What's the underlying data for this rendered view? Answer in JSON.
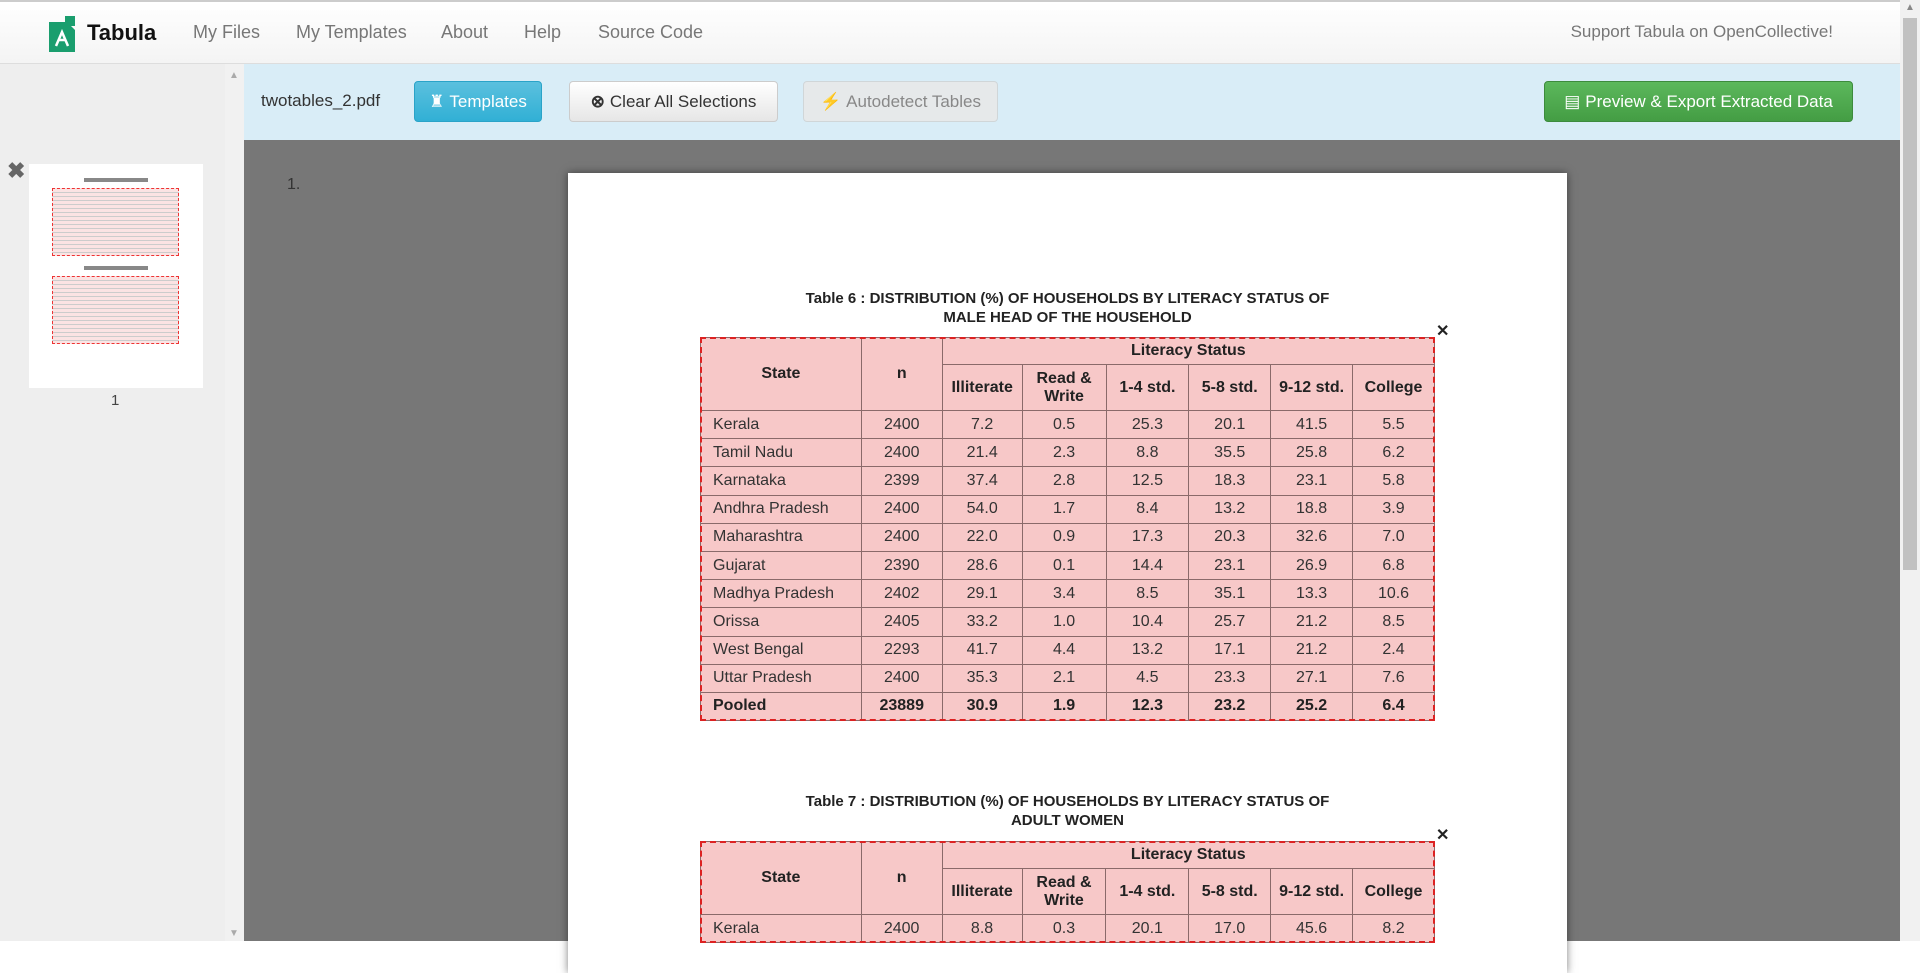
{
  "nav": {
    "brand": "Tabula",
    "links": [
      "My Files",
      "My Templates",
      "About",
      "Help",
      "Source Code"
    ],
    "support": "Support Tabula on OpenCollective!"
  },
  "sidebar": {
    "page_label": "1"
  },
  "toolbar": {
    "filename": "twotables_2.pdf",
    "templates": "Templates",
    "clear": "Clear All Selections",
    "autodetect": "Autodetect Tables",
    "preview": "Preview & Export Extracted Data"
  },
  "main": {
    "page_number": "1."
  },
  "colors": {
    "selection": "#dd2222",
    "toolbar_bg": "#d9edf7",
    "export_green": "#5cb85c",
    "templates_blue": "#5bc0de"
  },
  "tables": [
    {
      "title1": "Table 6 : DISTRIBUTION (%) OF HOUSEHOLDS BY LITERACY STATUS OF",
      "title2": "MALE HEAD OF THE HOUSEHOLD",
      "headers": {
        "state": "State",
        "n": "n",
        "group": "Literacy Status",
        "cols": [
          "Illiterate",
          "Read & Write",
          "1-4 std.",
          "5-8 std.",
          "9-12 std.",
          "College"
        ]
      },
      "rows": [
        [
          "Kerala",
          "2400",
          "7.2",
          "0.5",
          "25.3",
          "20.1",
          "41.5",
          "5.5"
        ],
        [
          "Tamil Nadu",
          "2400",
          "21.4",
          "2.3",
          "8.8",
          "35.5",
          "25.8",
          "6.2"
        ],
        [
          "Karnataka",
          "2399",
          "37.4",
          "2.8",
          "12.5",
          "18.3",
          "23.1",
          "5.8"
        ],
        [
          "Andhra Pradesh",
          "2400",
          "54.0",
          "1.7",
          "8.4",
          "13.2",
          "18.8",
          "3.9"
        ],
        [
          "Maharashtra",
          "2400",
          "22.0",
          "0.9",
          "17.3",
          "20.3",
          "32.6",
          "7.0"
        ],
        [
          "Gujarat",
          "2390",
          "28.6",
          "0.1",
          "14.4",
          "23.1",
          "26.9",
          "6.8"
        ],
        [
          "Madhya Pradesh",
          "2402",
          "29.1",
          "3.4",
          "8.5",
          "35.1",
          "13.3",
          "10.6"
        ],
        [
          "Orissa",
          "2405",
          "33.2",
          "1.0",
          "10.4",
          "25.7",
          "21.2",
          "8.5"
        ],
        [
          "West Bengal",
          "2293",
          "41.7",
          "4.4",
          "13.2",
          "17.1",
          "21.2",
          "2.4"
        ],
        [
          "Uttar Pradesh",
          "2400",
          "35.3",
          "2.1",
          "4.5",
          "23.3",
          "27.1",
          "7.6"
        ],
        [
          "Pooled",
          "23889",
          "30.9",
          "1.9",
          "12.3",
          "23.2",
          "25.2",
          "6.4"
        ]
      ]
    },
    {
      "title1": "Table 7 : DISTRIBUTION (%) OF HOUSEHOLDS BY LITERACY STATUS OF",
      "title2": "ADULT WOMEN",
      "headers": {
        "state": "State",
        "n": "n",
        "group": "Literacy Status",
        "cols": [
          "Illiterate",
          "Read & Write",
          "1-4 std.",
          "5-8 std.",
          "9-12 std.",
          "College"
        ]
      },
      "rows": [
        [
          "Kerala",
          "2400",
          "8.8",
          "0.3",
          "20.1",
          "17.0",
          "45.6",
          "8.2"
        ]
      ]
    }
  ]
}
